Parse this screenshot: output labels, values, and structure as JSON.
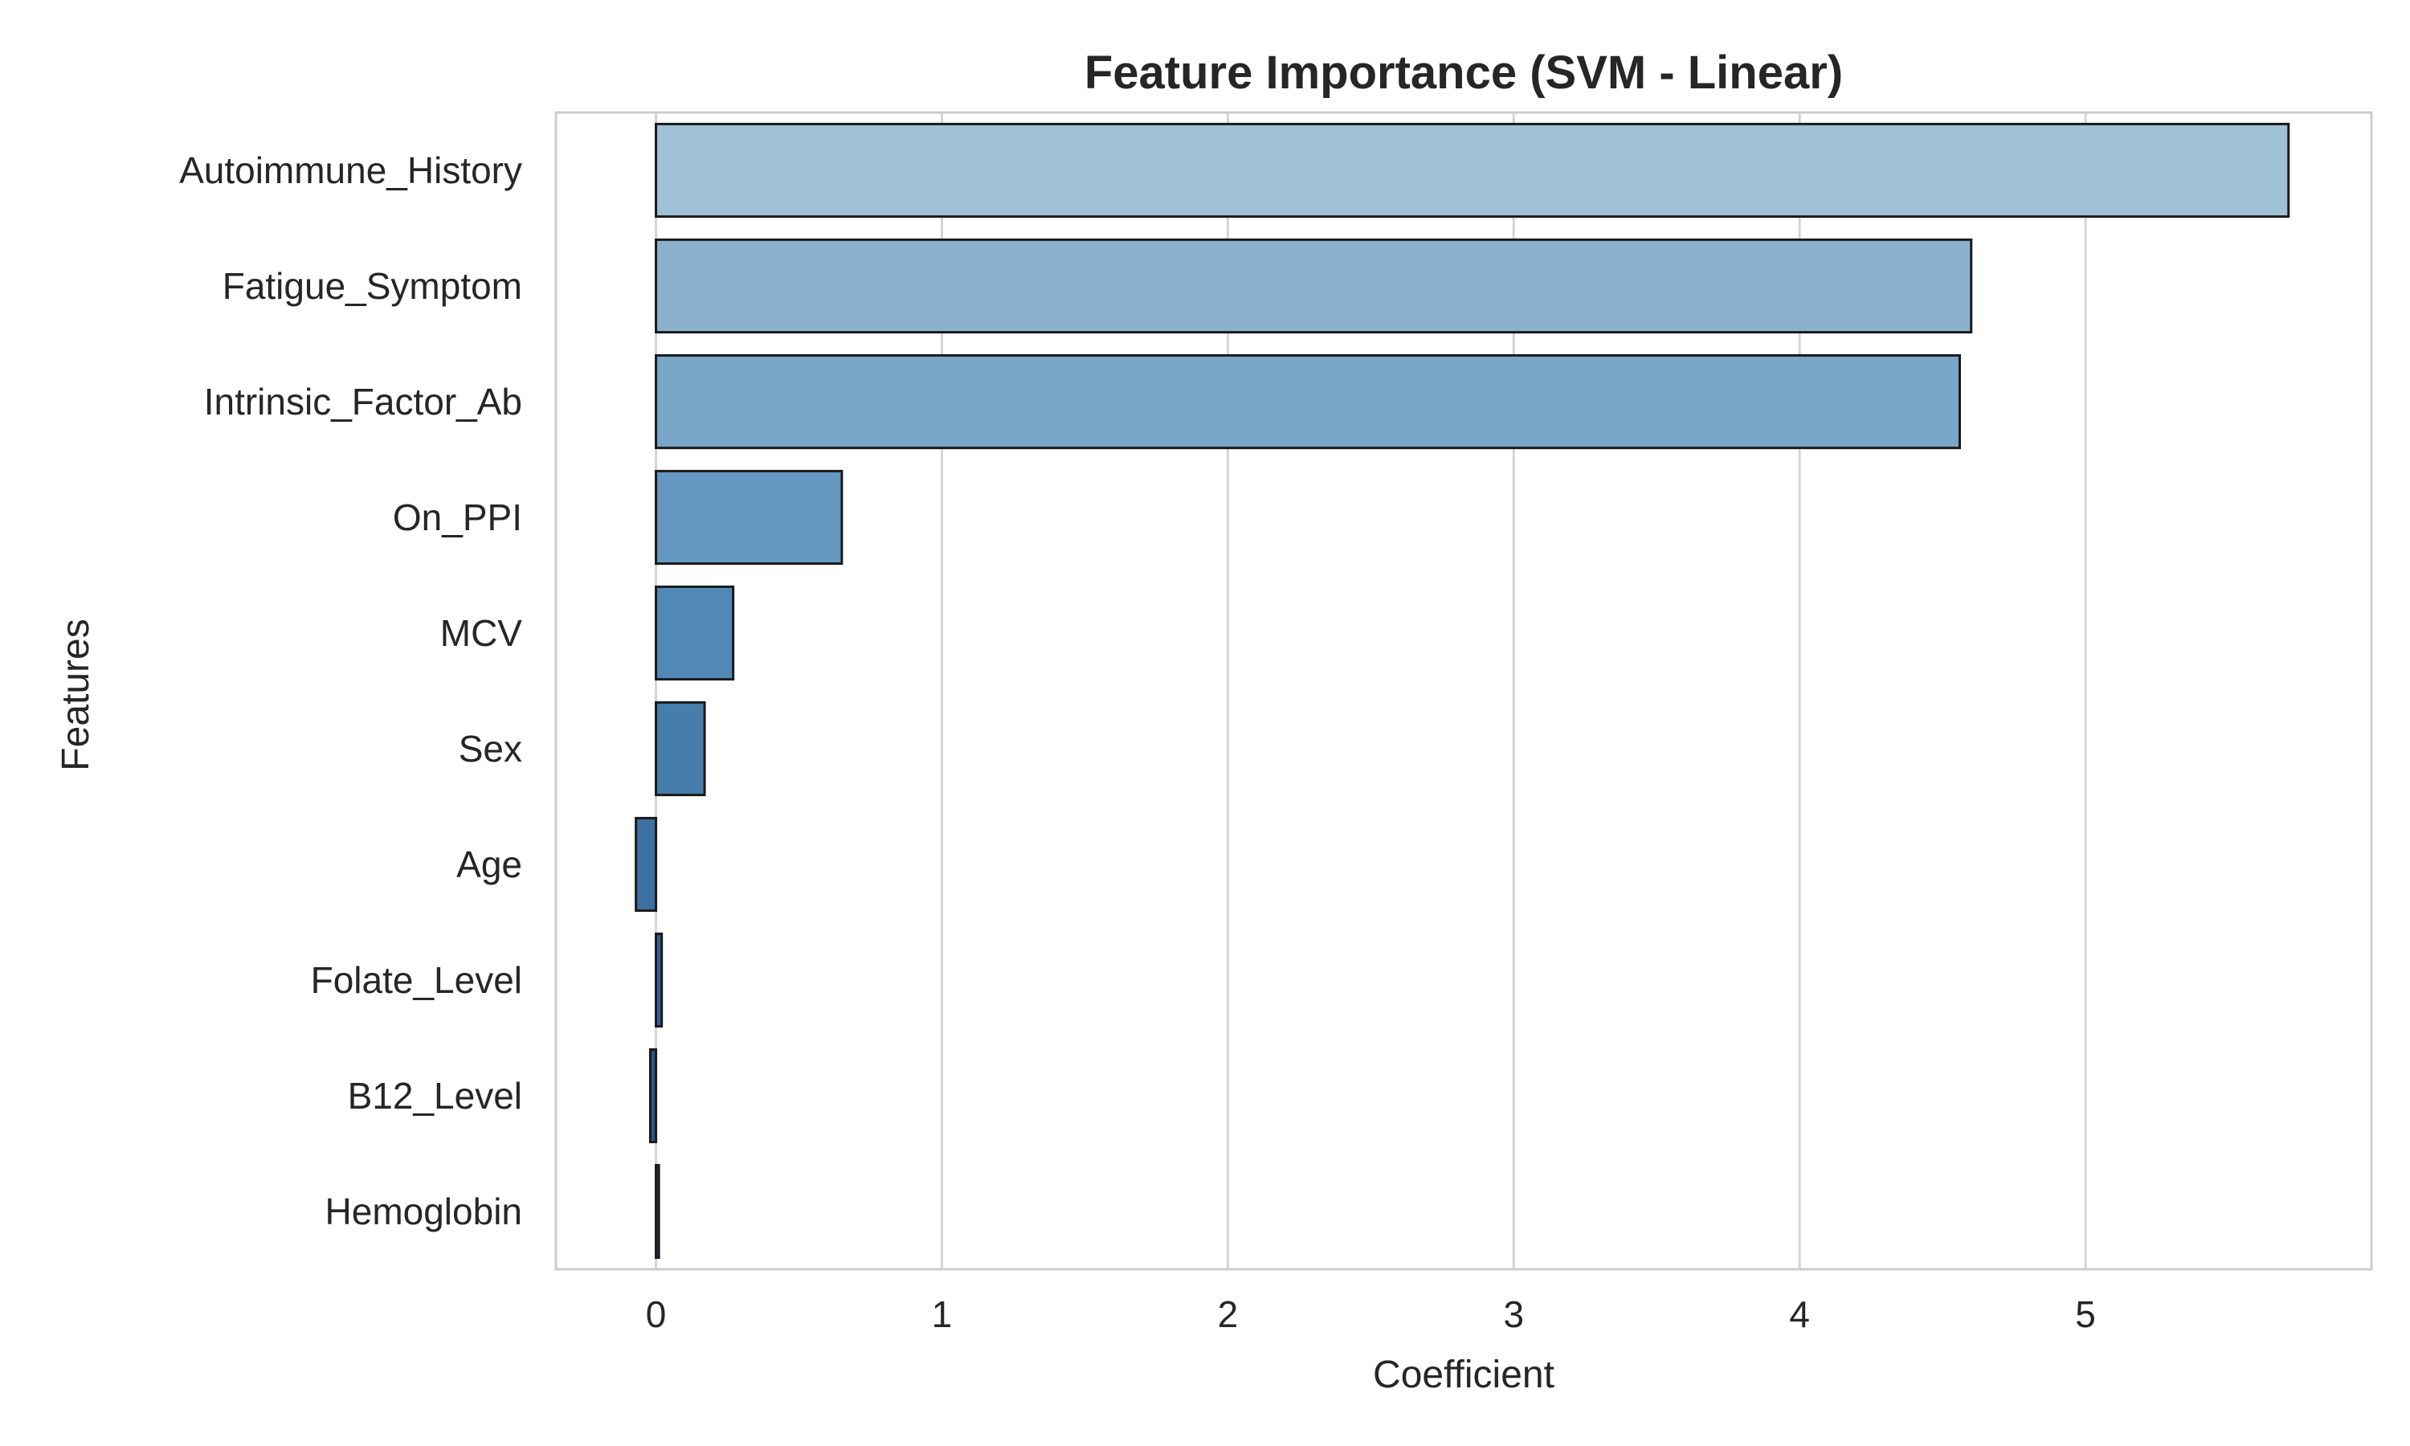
{
  "chart_data": {
    "type": "bar",
    "orientation": "horizontal",
    "title": "Feature Importance (SVM - Linear)",
    "xlabel": "Coefficient",
    "ylabel": "Features",
    "xlim": [
      -0.35,
      6.0
    ],
    "xticks": [
      0,
      1,
      2,
      3,
      4,
      5
    ],
    "grid": "vertical",
    "legend": "none",
    "categories": [
      "Autoimmune_History",
      "Fatigue_Symptom",
      "Intrinsic_Factor_Ab",
      "On_PPI",
      "MCV",
      "Sex",
      "Age",
      "Folate_Level",
      "B12_Level",
      "Hemoglobin"
    ],
    "values": [
      5.71,
      4.6,
      4.56,
      0.65,
      0.27,
      0.17,
      -0.07,
      0.02,
      -0.02,
      0.01
    ],
    "colors": [
      "#9fc1d6",
      "#8bb2cd",
      "#78a6c6",
      "#6498c0",
      "#5189b6",
      "#457dab",
      "#3e70a0",
      "#346294",
      "#2c5588",
      "#25487b"
    ],
    "bar_edge_color": "#1a1a1a"
  }
}
